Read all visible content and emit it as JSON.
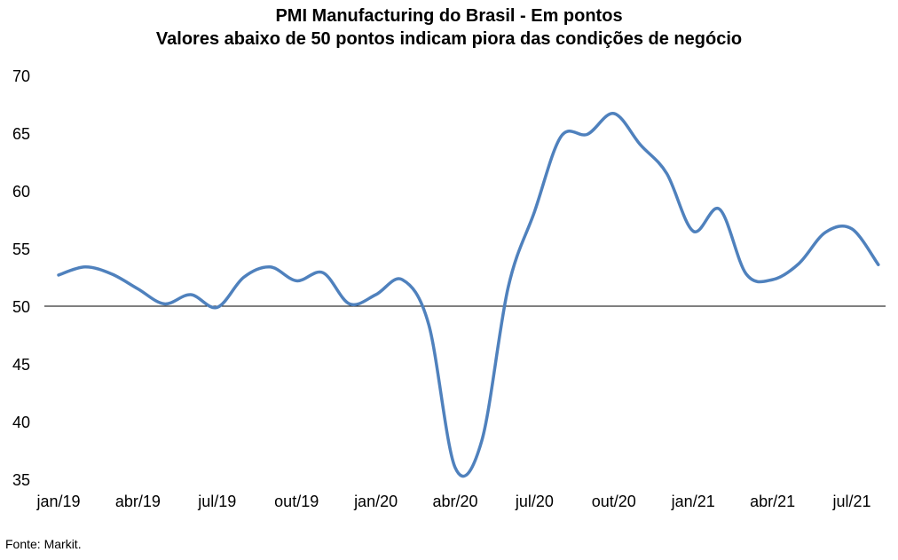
{
  "chart_data": {
    "type": "line",
    "title": "PMI Manufacturing do Brasil - Em pontos",
    "subtitle": "Valores abaixo de 50 pontos indicam piora das condições de negócio",
    "xlabel": "",
    "ylabel": "",
    "ylim": [
      35,
      70
    ],
    "yticks": [
      "35",
      "40",
      "45",
      "50",
      "55",
      "60",
      "65",
      "70"
    ],
    "tick_labels": [
      "jan/19",
      "abr/19",
      "jul/19",
      "out/19",
      "jan/20",
      "abr/20",
      "jul/20",
      "out/20",
      "jan/21",
      "abr/21",
      "jul/21"
    ],
    "reference_line": 50,
    "grid": false,
    "line_color": "#4f81bd",
    "x": [
      "jan/19",
      "fev/19",
      "mar/19",
      "abr/19",
      "mai/19",
      "jun/19",
      "jul/19",
      "ago/19",
      "set/19",
      "out/19",
      "nov/19",
      "dez/19",
      "jan/20",
      "fev/20",
      "mar/20",
      "abr/20",
      "mai/20",
      "jun/20",
      "jul/20",
      "ago/20",
      "set/20",
      "out/20",
      "nov/20",
      "dez/20",
      "jan/21",
      "fev/21",
      "mar/21",
      "abr/21",
      "mai/21",
      "jun/21",
      "jul/21",
      "ago/21"
    ],
    "series": [
      {
        "values": [
          52.7,
          53.4,
          52.8,
          51.5,
          50.2,
          51.0,
          49.9,
          52.5,
          53.4,
          52.2,
          52.9,
          50.2,
          51.0,
          52.3,
          48.4,
          36.0,
          38.3,
          51.6,
          58.2,
          64.7,
          64.9,
          66.7,
          64.0,
          61.5,
          56.5,
          58.4,
          52.8,
          52.3,
          53.7,
          56.4,
          56.7,
          53.6
        ]
      }
    ]
  },
  "source_text": "Fonte: Markit."
}
